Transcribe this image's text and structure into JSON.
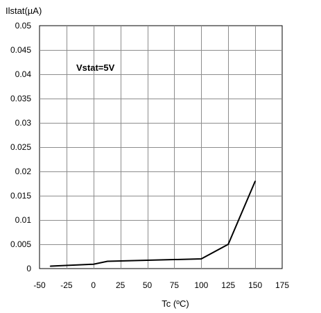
{
  "chart_data": {
    "type": "line",
    "ylabel": "Ilstat(µA)",
    "xlabel": "Tc (ºC)",
    "annotation": "Vstat=5V",
    "xlim": [
      -50,
      175
    ],
    "ylim": [
      0,
      0.05
    ],
    "x_ticks": [
      -50,
      -25,
      0,
      25,
      50,
      75,
      100,
      125,
      150,
      175
    ],
    "x_tick_labels": [
      "-50",
      "-25",
      "0",
      "25",
      "50",
      "75",
      "100",
      "125",
      "150",
      "175"
    ],
    "y_ticks": [
      0,
      0.005,
      0.01,
      0.015,
      0.02,
      0.025,
      0.03,
      0.035,
      0.04,
      0.045,
      0.05
    ],
    "y_tick_labels": [
      "0",
      "0.005",
      "0.01",
      "0.015",
      "0.02",
      "0.025",
      "0.03",
      "0.035",
      "0.04",
      "0.045",
      "0.05"
    ],
    "grid": true,
    "legend": "none",
    "series": [
      {
        "x": [
          -40,
          0,
          13,
          100,
          125,
          150
        ],
        "y": [
          0.0005,
          0.0009,
          0.0015,
          0.002,
          0.005,
          0.018
        ],
        "color": "#000000"
      }
    ]
  }
}
